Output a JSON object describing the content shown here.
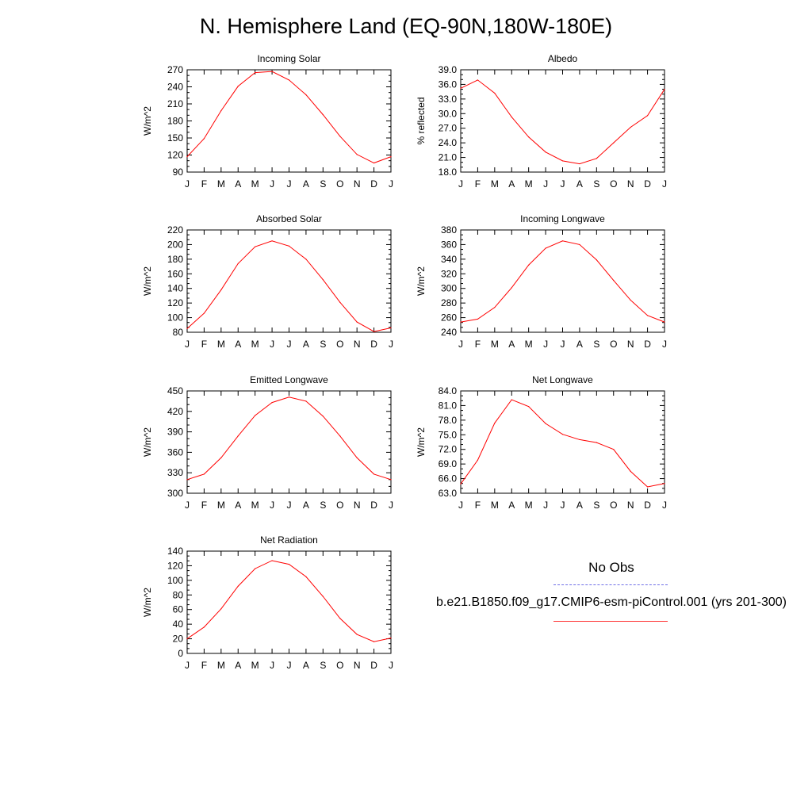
{
  "title": "N. Hemisphere Land (EQ-90N,180W-180E)",
  "colors": {
    "model_line": "#ff0000",
    "obs_line": "#6f6fe6",
    "axes": "#000000"
  },
  "legend": {
    "obs_label": "No Obs",
    "model_label": "b.e21.B1850.f09_g17.CMIP6-esm-piControl.001 (yrs 201-300)"
  },
  "chart_data": [
    {
      "type": "line",
      "title": "Incoming Solar",
      "ylabel": "W/m^2",
      "categories": [
        "J",
        "F",
        "M",
        "A",
        "M",
        "J",
        "J",
        "A",
        "S",
        "O",
        "N",
        "D",
        "J"
      ],
      "ylim": [
        90,
        270
      ],
      "yticks": [
        "90",
        "120",
        "150",
        "180",
        "210",
        "240",
        "270"
      ],
      "series": [
        {
          "name": "b.e21.B1850.f09_g17.CMIP6-esm-piControl.001 (yrs 201-300)",
          "values": [
            117,
            149,
            198,
            241,
            265,
            267,
            252,
            226,
            191,
            153,
            121,
            106,
            117
          ]
        }
      ]
    },
    {
      "type": "line",
      "title": "Albedo",
      "ylabel": "% reflected",
      "categories": [
        "J",
        "F",
        "M",
        "A",
        "M",
        "J",
        "J",
        "A",
        "S",
        "O",
        "N",
        "D",
        "J"
      ],
      "ylim": [
        18.0,
        39.0
      ],
      "yticks": [
        "18.0",
        "21.0",
        "24.0",
        "27.0",
        "30.0",
        "33.0",
        "36.0",
        "39.0"
      ],
      "series": [
        {
          "name": "b.e21.B1850.f09_g17.CMIP6-esm-piControl.001 (yrs 201-300)",
          "values": [
            35.2,
            36.9,
            34.2,
            29.3,
            25.2,
            22.1,
            20.3,
            19.7,
            20.8,
            24.0,
            27.2,
            29.6,
            35.0
          ]
        }
      ]
    },
    {
      "type": "line",
      "title": "Absorbed Solar",
      "ylabel": "W/m^2",
      "categories": [
        "J",
        "F",
        "M",
        "A",
        "M",
        "J",
        "J",
        "A",
        "S",
        "O",
        "N",
        "D",
        "J"
      ],
      "ylim": [
        80,
        220
      ],
      "yticks": [
        "80",
        "100",
        "120",
        "140",
        "160",
        "180",
        "200",
        "220"
      ],
      "series": [
        {
          "name": "b.e21.B1850.f09_g17.CMIP6-esm-piControl.001 (yrs 201-300)",
          "values": [
            85,
            106,
            138,
            174,
            197,
            205,
            198,
            180,
            152,
            121,
            94,
            81,
            86
          ]
        }
      ]
    },
    {
      "type": "line",
      "title": "Incoming Longwave",
      "ylabel": "W/m^2",
      "categories": [
        "J",
        "F",
        "M",
        "A",
        "M",
        "J",
        "J",
        "A",
        "S",
        "O",
        "N",
        "D",
        "J"
      ],
      "ylim": [
        240,
        380
      ],
      "yticks": [
        "240",
        "260",
        "280",
        "300",
        "320",
        "340",
        "360",
        "380"
      ],
      "series": [
        {
          "name": "b.e21.B1850.f09_g17.CMIP6-esm-piControl.001 (yrs 201-300)",
          "values": [
            254,
            258,
            274,
            301,
            332,
            355,
            365,
            360,
            339,
            311,
            284,
            263,
            254
          ]
        }
      ]
    },
    {
      "type": "line",
      "title": "Emitted Longwave",
      "ylabel": "W/m^2",
      "categories": [
        "J",
        "F",
        "M",
        "A",
        "M",
        "J",
        "J",
        "A",
        "S",
        "O",
        "N",
        "D",
        "J"
      ],
      "ylim": [
        300,
        450
      ],
      "yticks": [
        "300",
        "330",
        "360",
        "390",
        "420",
        "450"
      ],
      "series": [
        {
          "name": "b.e21.B1850.f09_g17.CMIP6-esm-piControl.001 (yrs 201-300)",
          "values": [
            320,
            328,
            352,
            384,
            414,
            433,
            441,
            435,
            413,
            384,
            352,
            328,
            320
          ]
        }
      ]
    },
    {
      "type": "line",
      "title": "Net Longwave",
      "ylabel": "W/m^2",
      "categories": [
        "J",
        "F",
        "M",
        "A",
        "M",
        "J",
        "J",
        "A",
        "S",
        "O",
        "N",
        "D",
        "J"
      ],
      "ylim": [
        63.0,
        84.0
      ],
      "yticks": [
        "63.0",
        "66.0",
        "69.0",
        "72.0",
        "75.0",
        "78.0",
        "81.0",
        "84.0"
      ],
      "series": [
        {
          "name": "b.e21.B1850.f09_g17.CMIP6-esm-piControl.001 (yrs 201-300)",
          "values": [
            64.9,
            69.8,
            77.4,
            82.2,
            80.8,
            77.3,
            75.1,
            74.0,
            73.4,
            72.0,
            67.5,
            64.3,
            65.0
          ]
        }
      ]
    },
    {
      "type": "line",
      "title": "Net Radiation",
      "ylabel": "W/m^2",
      "categories": [
        "J",
        "F",
        "M",
        "A",
        "M",
        "J",
        "J",
        "A",
        "S",
        "O",
        "N",
        "D",
        "J"
      ],
      "ylim": [
        0,
        140
      ],
      "yticks": [
        "0",
        "20",
        "40",
        "60",
        "80",
        "100",
        "120",
        "140"
      ],
      "series": [
        {
          "name": "b.e21.B1850.f09_g17.CMIP6-esm-piControl.001 (yrs 201-300)",
          "values": [
            20,
            36,
            61,
            92,
            116,
            127,
            122,
            105,
            78,
            48,
            26,
            16,
            21
          ]
        }
      ]
    }
  ]
}
